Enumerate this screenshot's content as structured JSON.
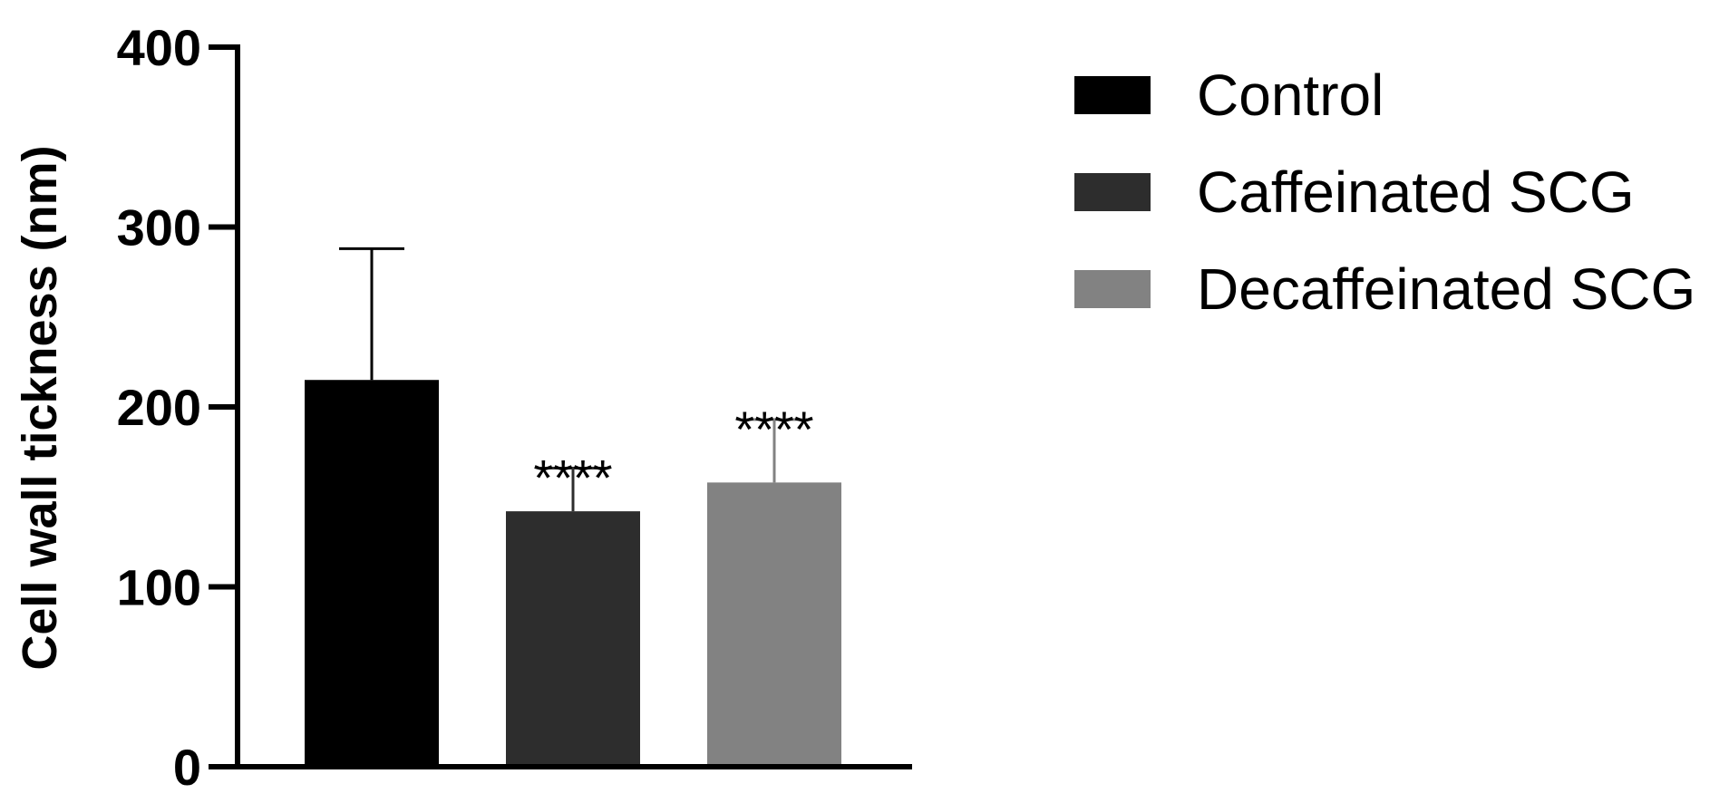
{
  "chart_data": {
    "type": "bar",
    "title": "",
    "xlabel": "",
    "ylabel": "Cell wall tickness (nm)",
    "ylim": [
      0,
      400
    ],
    "yticks": [
      0,
      100,
      200,
      300,
      400
    ],
    "grid": false,
    "legend_position": "right",
    "categories": [
      "Control",
      "Caffeinated SCG",
      "Decaffeinated SCG"
    ],
    "values": [
      215,
      142,
      158
    ],
    "errors": [
      73,
      24,
      35
    ],
    "annotations": [
      "",
      "****",
      "****"
    ],
    "colors": [
      "#000000",
      "#2d2d2d",
      "#828282"
    ]
  },
  "legend": {
    "items": [
      {
        "label": "Control",
        "color": "#000000"
      },
      {
        "label": "Caffeinated SCG",
        "color": "#2d2d2d"
      },
      {
        "label": "Decaffeinated SCG",
        "color": "#828282"
      }
    ]
  }
}
